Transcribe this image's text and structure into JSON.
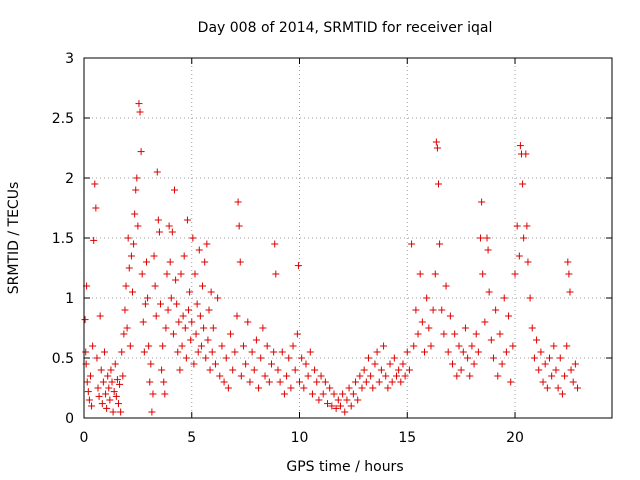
{
  "chart_data": {
    "type": "scatter",
    "title": "Day 008 of 2014, SRMTID for receiver iqal",
    "xlabel": "GPS time / hours",
    "ylabel": "SRMTID / TECUs",
    "xlim": [
      0,
      24.5
    ],
    "ylim": [
      0,
      3
    ],
    "xticks": [
      0,
      5,
      10,
      15,
      20
    ],
    "xtick_labels": [
      "0",
      "5",
      "10",
      "15",
      "20"
    ],
    "yticks": [
      0,
      0.5,
      1,
      1.5,
      2,
      2.5,
      3
    ],
    "ytick_labels": [
      "0",
      "0.5",
      "1",
      "1.5",
      "2",
      "2.5",
      "3"
    ],
    "grid": true,
    "marker": "plus",
    "color": "#dd0000",
    "series": [
      {
        "name": "SRMTID",
        "points": [
          [
            0.05,
            0.82
          ],
          [
            0.08,
            0.55
          ],
          [
            0.1,
            0.45
          ],
          [
            0.12,
            1.1
          ],
          [
            0.15,
            0.3
          ],
          [
            0.2,
            0.22
          ],
          [
            0.25,
            0.15
          ],
          [
            0.3,
            0.35
          ],
          [
            0.35,
            0.1
          ],
          [
            0.4,
            0.6
          ],
          [
            0.45,
            1.48
          ],
          [
            0.5,
            1.95
          ],
          [
            0.55,
            1.75
          ],
          [
            0.6,
            0.5
          ],
          [
            0.65,
            0.25
          ],
          [
            0.7,
            0.18
          ],
          [
            0.75,
            0.85
          ],
          [
            0.8,
            0.4
          ],
          [
            0.85,
            0.12
          ],
          [
            0.9,
            0.3
          ],
          [
            0.95,
            0.55
          ],
          [
            1.0,
            0.2
          ],
          [
            1.05,
            0.08
          ],
          [
            1.1,
            0.35
          ],
          [
            1.15,
            0.25
          ],
          [
            1.2,
            0.15
          ],
          [
            1.25,
            0.4
          ],
          [
            1.3,
            0.3
          ],
          [
            1.35,
            0.05
          ],
          [
            1.4,
            0.22
          ],
          [
            1.45,
            0.45
          ],
          [
            1.5,
            0.18
          ],
          [
            1.55,
            0.32
          ],
          [
            1.6,
            0.12
          ],
          [
            1.65,
            0.28
          ],
          [
            1.7,
            0.05
          ],
          [
            1.75,
            0.55
          ],
          [
            1.8,
            0.35
          ],
          [
            1.85,
            0.7
          ],
          [
            1.9,
            0.9
          ],
          [
            1.95,
            1.1
          ],
          [
            2.0,
            0.75
          ],
          [
            2.05,
            1.5
          ],
          [
            2.1,
            1.25
          ],
          [
            2.15,
            0.6
          ],
          [
            2.2,
            1.35
          ],
          [
            2.25,
            1.05
          ],
          [
            2.3,
            1.45
          ],
          [
            2.35,
            1.7
          ],
          [
            2.4,
            1.9
          ],
          [
            2.45,
            2.0
          ],
          [
            2.5,
            1.6
          ],
          [
            2.55,
            2.62
          ],
          [
            2.6,
            2.55
          ],
          [
            2.65,
            2.22
          ],
          [
            2.7,
            1.2
          ],
          [
            2.75,
            0.8
          ],
          [
            2.8,
            0.55
          ],
          [
            2.85,
            0.95
          ],
          [
            2.9,
            1.3
          ],
          [
            2.95,
            1.0
          ],
          [
            3.0,
            0.6
          ],
          [
            3.05,
            0.3
          ],
          [
            3.1,
            0.45
          ],
          [
            3.15,
            0.05
          ],
          [
            3.2,
            0.2
          ],
          [
            3.25,
            1.35
          ],
          [
            3.3,
            1.1
          ],
          [
            3.35,
            0.85
          ],
          [
            3.4,
            2.05
          ],
          [
            3.45,
            1.65
          ],
          [
            3.5,
            1.55
          ],
          [
            3.55,
            0.95
          ],
          [
            3.6,
            0.4
          ],
          [
            3.65,
            0.6
          ],
          [
            3.7,
            0.3
          ],
          [
            3.75,
            0.2
          ],
          [
            3.8,
            0.75
          ],
          [
            3.85,
            1.2
          ],
          [
            3.9,
            0.9
          ],
          [
            3.95,
            1.6
          ],
          [
            4.0,
            1.3
          ],
          [
            4.05,
            1.0
          ],
          [
            4.1,
            1.55
          ],
          [
            4.15,
            0.7
          ],
          [
            4.2,
            1.9
          ],
          [
            4.25,
            1.15
          ],
          [
            4.3,
            0.95
          ],
          [
            4.35,
            0.55
          ],
          [
            4.4,
            0.8
          ],
          [
            4.45,
            0.4
          ],
          [
            4.5,
            1.2
          ],
          [
            4.55,
            0.6
          ],
          [
            4.6,
            0.85
          ],
          [
            4.65,
            1.35
          ],
          [
            4.7,
            0.75
          ],
          [
            4.75,
            0.5
          ],
          [
            4.8,
            1.65
          ],
          [
            4.85,
            0.9
          ],
          [
            4.9,
            1.05
          ],
          [
            4.95,
            0.65
          ],
          [
            5.0,
            0.8
          ],
          [
            5.05,
            1.5
          ],
          [
            5.1,
            0.45
          ],
          [
            5.15,
            1.2
          ],
          [
            5.2,
            0.7
          ],
          [
            5.25,
            0.95
          ],
          [
            5.3,
            0.55
          ],
          [
            5.35,
            1.4
          ],
          [
            5.4,
            0.85
          ],
          [
            5.45,
            0.6
          ],
          [
            5.5,
            1.1
          ],
          [
            5.55,
            0.75
          ],
          [
            5.6,
            1.3
          ],
          [
            5.65,
            0.5
          ],
          [
            5.7,
            1.45
          ],
          [
            5.75,
            0.65
          ],
          [
            5.8,
            0.9
          ],
          [
            5.85,
            0.4
          ],
          [
            5.9,
            1.05
          ],
          [
            5.95,
            0.55
          ],
          [
            6.0,
            0.75
          ],
          [
            6.1,
            0.45
          ],
          [
            6.2,
            1.0
          ],
          [
            6.3,
            0.35
          ],
          [
            6.4,
            0.6
          ],
          [
            6.5,
            0.3
          ],
          [
            6.6,
            0.5
          ],
          [
            6.7,
            0.25
          ],
          [
            6.8,
            0.7
          ],
          [
            6.9,
            0.4
          ],
          [
            7.0,
            0.55
          ],
          [
            7.1,
            0.85
          ],
          [
            7.15,
            1.8
          ],
          [
            7.2,
            1.6
          ],
          [
            7.25,
            1.3
          ],
          [
            7.3,
            0.35
          ],
          [
            7.4,
            0.6
          ],
          [
            7.5,
            0.45
          ],
          [
            7.6,
            0.8
          ],
          [
            7.7,
            0.3
          ],
          [
            7.8,
            0.55
          ],
          [
            7.9,
            0.4
          ],
          [
            8.0,
            0.65
          ],
          [
            8.1,
            0.25
          ],
          [
            8.2,
            0.5
          ],
          [
            8.3,
            0.75
          ],
          [
            8.4,
            0.35
          ],
          [
            8.5,
            0.6
          ],
          [
            8.6,
            0.3
          ],
          [
            8.7,
            0.45
          ],
          [
            8.8,
            0.55
          ],
          [
            8.85,
            1.45
          ],
          [
            8.9,
            1.2
          ],
          [
            9.0,
            0.4
          ],
          [
            9.1,
            0.3
          ],
          [
            9.2,
            0.55
          ],
          [
            9.3,
            0.2
          ],
          [
            9.4,
            0.35
          ],
          [
            9.5,
            0.5
          ],
          [
            9.6,
            0.25
          ],
          [
            9.7,
            0.6
          ],
          [
            9.8,
            0.4
          ],
          [
            9.9,
            0.7
          ],
          [
            9.95,
            1.27
          ],
          [
            10.0,
            0.3
          ],
          [
            10.1,
            0.5
          ],
          [
            10.2,
            0.25
          ],
          [
            10.3,
            0.45
          ],
          [
            10.4,
            0.35
          ],
          [
            10.5,
            0.55
          ],
          [
            10.6,
            0.2
          ],
          [
            10.7,
            0.4
          ],
          [
            10.8,
            0.3
          ],
          [
            10.9,
            0.15
          ],
          [
            11.0,
            0.35
          ],
          [
            11.1,
            0.2
          ],
          [
            11.2,
            0.3
          ],
          [
            11.3,
            0.12
          ],
          [
            11.4,
            0.25
          ],
          [
            11.5,
            0.1
          ],
          [
            11.6,
            0.2
          ],
          [
            11.7,
            0.08
          ],
          [
            11.8,
            0.15
          ],
          [
            11.9,
            0.1
          ],
          [
            12.0,
            0.2
          ],
          [
            12.1,
            0.05
          ],
          [
            12.2,
            0.15
          ],
          [
            12.3,
            0.25
          ],
          [
            12.4,
            0.1
          ],
          [
            12.5,
            0.2
          ],
          [
            12.6,
            0.3
          ],
          [
            12.7,
            0.15
          ],
          [
            12.8,
            0.35
          ],
          [
            12.9,
            0.25
          ],
          [
            13.0,
            0.4
          ],
          [
            13.1,
            0.3
          ],
          [
            13.2,
            0.5
          ],
          [
            13.3,
            0.35
          ],
          [
            13.4,
            0.25
          ],
          [
            13.5,
            0.45
          ],
          [
            13.6,
            0.55
          ],
          [
            13.7,
            0.3
          ],
          [
            13.8,
            0.4
          ],
          [
            13.9,
            0.6
          ],
          [
            14.0,
            0.35
          ],
          [
            14.1,
            0.25
          ],
          [
            14.2,
            0.45
          ],
          [
            14.3,
            0.3
          ],
          [
            14.4,
            0.5
          ],
          [
            14.5,
            0.35
          ],
          [
            14.6,
            0.4
          ],
          [
            14.7,
            0.3
          ],
          [
            14.8,
            0.45
          ],
          [
            14.9,
            0.35
          ],
          [
            15.0,
            0.55
          ],
          [
            15.1,
            0.4
          ],
          [
            15.2,
            1.45
          ],
          [
            15.3,
            0.6
          ],
          [
            15.4,
            0.9
          ],
          [
            15.5,
            0.7
          ],
          [
            15.6,
            1.2
          ],
          [
            15.7,
            0.8
          ],
          [
            15.8,
            0.55
          ],
          [
            15.9,
            1.0
          ],
          [
            16.0,
            0.75
          ],
          [
            16.1,
            0.6
          ],
          [
            16.2,
            0.9
          ],
          [
            16.3,
            1.2
          ],
          [
            16.35,
            2.3
          ],
          [
            16.4,
            2.25
          ],
          [
            16.45,
            1.95
          ],
          [
            16.5,
            1.45
          ],
          [
            16.6,
            0.9
          ],
          [
            16.7,
            0.7
          ],
          [
            16.8,
            1.1
          ],
          [
            16.9,
            0.55
          ],
          [
            17.0,
            0.85
          ],
          [
            17.1,
            0.45
          ],
          [
            17.2,
            0.7
          ],
          [
            17.3,
            0.35
          ],
          [
            17.4,
            0.6
          ],
          [
            17.5,
            0.4
          ],
          [
            17.6,
            0.55
          ],
          [
            17.7,
            0.75
          ],
          [
            17.8,
            0.5
          ],
          [
            17.9,
            0.35
          ],
          [
            18.0,
            0.6
          ],
          [
            18.1,
            0.45
          ],
          [
            18.2,
            0.7
          ],
          [
            18.3,
            0.55
          ],
          [
            18.4,
            1.5
          ],
          [
            18.45,
            1.8
          ],
          [
            18.5,
            1.2
          ],
          [
            18.6,
            0.8
          ],
          [
            18.7,
            1.5
          ],
          [
            18.75,
            1.4
          ],
          [
            18.8,
            1.05
          ],
          [
            18.9,
            0.65
          ],
          [
            19.0,
            0.5
          ],
          [
            19.1,
            0.9
          ],
          [
            19.2,
            0.35
          ],
          [
            19.3,
            0.7
          ],
          [
            19.4,
            0.45
          ],
          [
            19.5,
            1.0
          ],
          [
            19.6,
            0.55
          ],
          [
            19.7,
            0.85
          ],
          [
            19.8,
            0.3
          ],
          [
            19.9,
            0.6
          ],
          [
            20.0,
            1.2
          ],
          [
            20.1,
            1.6
          ],
          [
            20.2,
            1.35
          ],
          [
            20.25,
            2.27
          ],
          [
            20.3,
            2.2
          ],
          [
            20.35,
            1.95
          ],
          [
            20.4,
            1.5
          ],
          [
            20.5,
            2.2
          ],
          [
            20.55,
            1.6
          ],
          [
            20.6,
            1.3
          ],
          [
            20.7,
            1.0
          ],
          [
            20.8,
            0.75
          ],
          [
            20.9,
            0.5
          ],
          [
            21.0,
            0.65
          ],
          [
            21.1,
            0.4
          ],
          [
            21.2,
            0.55
          ],
          [
            21.3,
            0.3
          ],
          [
            21.4,
            0.45
          ],
          [
            21.5,
            0.25
          ],
          [
            21.6,
            0.5
          ],
          [
            21.7,
            0.35
          ],
          [
            21.8,
            0.6
          ],
          [
            21.9,
            0.4
          ],
          [
            22.0,
            0.25
          ],
          [
            22.1,
            0.5
          ],
          [
            22.2,
            0.2
          ],
          [
            22.3,
            0.35
          ],
          [
            22.4,
            0.6
          ],
          [
            22.45,
            1.3
          ],
          [
            22.5,
            1.2
          ],
          [
            22.55,
            1.05
          ],
          [
            22.6,
            0.4
          ],
          [
            22.7,
            0.3
          ],
          [
            22.8,
            0.45
          ],
          [
            22.9,
            0.25
          ]
        ]
      }
    ]
  }
}
